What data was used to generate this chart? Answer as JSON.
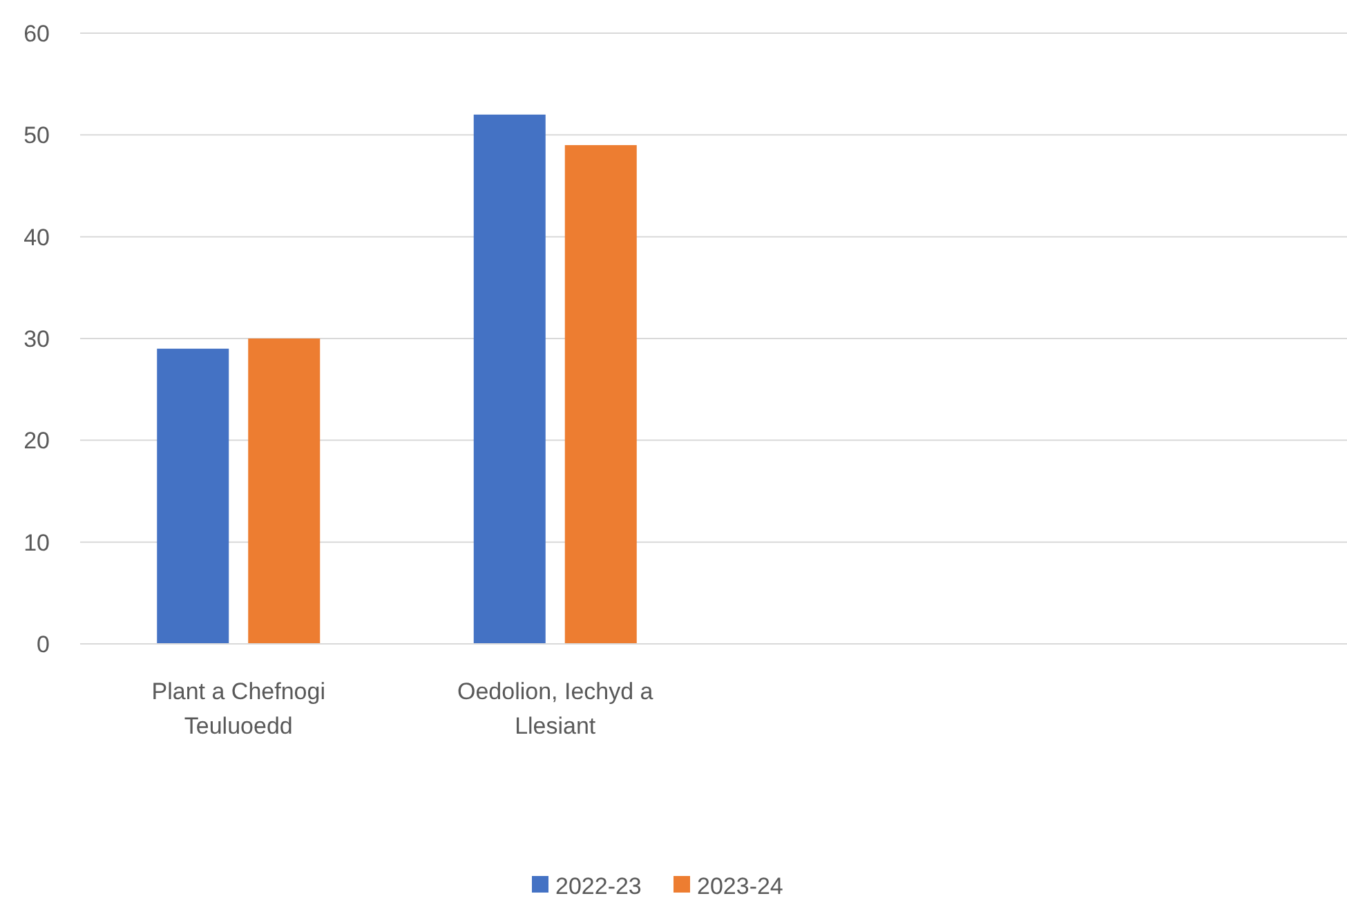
{
  "chart_data": {
    "type": "bar",
    "categories": [
      "Plant a Chefnogi Teuluoedd",
      "Oedolion, Iechyd a Llesiant",
      null,
      null
    ],
    "series": [
      {
        "name": "2022-23",
        "color": "#4472c4",
        "values": [
          29,
          52,
          null,
          null
        ]
      },
      {
        "name": "2023-24",
        "color": "#ed7d31",
        "values": [
          30,
          49,
          null,
          null
        ]
      }
    ],
    "ylim": [
      0,
      60
    ],
    "yticks": [
      0,
      10,
      20,
      30,
      40,
      50,
      60
    ],
    "grid": "y",
    "legend": "bottom"
  }
}
